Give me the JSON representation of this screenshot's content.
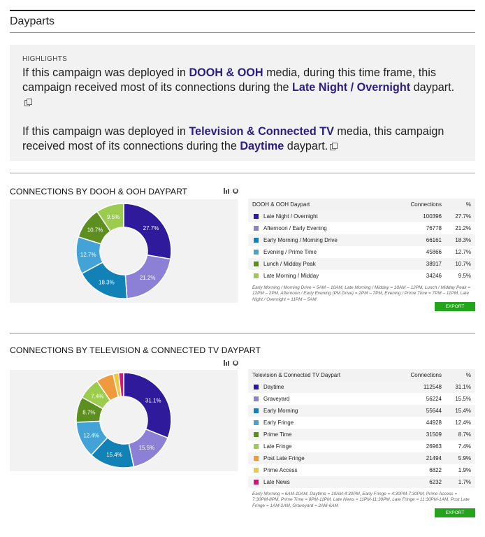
{
  "page": {
    "title": "Dayparts"
  },
  "highlights": {
    "label": "HIGHLIGHTS",
    "p1": {
      "pre": "If this campaign was deployed in ",
      "media": "DOOH & OOH",
      "mid": " media, during this time frame, this campaign received most of its connections during the ",
      "daypart": "Late Night / Overnight",
      "post": " daypart."
    },
    "p2": {
      "pre": "If this campaign was deployed in ",
      "media": "Television & Connected TV",
      "mid": " media, this campaign received most of its connections during the ",
      "daypart": "Daytime",
      "post": " daypart."
    }
  },
  "dooh": {
    "title": "CONNECTIONS BY DOOH & OOH DAYPART",
    "table_headers": {
      "name": "DOOH & OOH Daypart",
      "connections": "Connections",
      "pct": "%"
    },
    "footnote": "Early Morning / Morning Drive = 5AM – 10AM, Late Morning / Midday = 10AM – 12PM, Lunch / Midday Peak = 12PM – 2PM, Afternoon / Early Evening (PM Drive) = 2PM – 7PM, Evening / Prime Time = 7PM – 11PM, Late Night / Overnight = 11PM – 5AM",
    "export_label": "EXPORT",
    "rows": [
      {
        "name": "Late Night / Overnight",
        "connections": "100396",
        "pct": "27.7%",
        "color": "#2e1a9a"
      },
      {
        "name": "Afternoon / Early Evening",
        "connections": "76778",
        "pct": "21.2%",
        "color": "#8c7fd6"
      },
      {
        "name": "Early Morning / Morning Drive",
        "connections": "66161",
        "pct": "18.3%",
        "color": "#1282b6"
      },
      {
        "name": "Evening / Prime Time",
        "connections": "45866",
        "pct": "12.7%",
        "color": "#43a2d6"
      },
      {
        "name": "Lunch / Midday Peak",
        "connections": "38917",
        "pct": "10.7%",
        "color": "#5c8f1f"
      },
      {
        "name": "Late Morning / Midday",
        "connections": "34246",
        "pct": "9.5%",
        "color": "#9ccc4e"
      }
    ]
  },
  "tv": {
    "title": "CONNECTIONS BY TELEVISION & CONNECTED TV DAYPART",
    "table_headers": {
      "name": "Television & Connected TV Daypart",
      "connections": "Connections",
      "pct": "%"
    },
    "footnote": "Early Morning = 6AM-10AM,  Daytime = 10AM-4:30PM,  Early Fringe = 4:30PM-7:30PM, Prime Access = 7:30PM-8PM,  Prime Time = 8PM-11PM,  Late News = 11PM-11:30PM, Late Fringe = 11:30PM-1AM,  Post Late Fringe = 1AM-2AM,  Graveyard = 2AM-6AM",
    "export_label": "EXPORT",
    "rows": [
      {
        "name": "Daytime",
        "connections": "112548",
        "pct": "31.1%",
        "color": "#2e1a9a"
      },
      {
        "name": "Graveyard",
        "connections": "56224",
        "pct": "15.5%",
        "color": "#8c7fd6"
      },
      {
        "name": "Early Morning",
        "connections": "55644",
        "pct": "15.4%",
        "color": "#1282b6"
      },
      {
        "name": "Early Fringe",
        "connections": "44928",
        "pct": "12.4%",
        "color": "#43a2d6"
      },
      {
        "name": "Prime Time",
        "connections": "31509",
        "pct": "8.7%",
        "color": "#5c8f1f"
      },
      {
        "name": "Late Fringe",
        "connections": "26963",
        "pct": "7.4%",
        "color": "#9ccc4e"
      },
      {
        "name": "Post Late Fringe",
        "connections": "21494",
        "pct": "5.9%",
        "color": "#ef9a3c"
      },
      {
        "name": "Prime Access",
        "connections": "6822",
        "pct": "1.9%",
        "color": "#eecb3e"
      },
      {
        "name": "Late News",
        "connections": "6232",
        "pct": "1.7%",
        "color": "#d4187a"
      }
    ]
  },
  "chart_data": [
    {
      "type": "pie",
      "categories": [
        "Late Night / Overnight",
        "Afternoon / Early Evening",
        "Early Morning / Morning Drive",
        "Evening / Prime Time",
        "Lunch / Midday Peak",
        "Late Morning / Midday"
      ],
      "values": [
        100396,
        76778,
        66161,
        45866,
        38917,
        34246
      ],
      "labels": [
        "27.7%",
        "21.2%",
        "18.3%",
        "12.7%",
        "10.7%",
        "9.5%"
      ],
      "colors": [
        "#2e1a9a",
        "#8c7fd6",
        "#1282b6",
        "#43a2d6",
        "#5c8f1f",
        "#9ccc4e"
      ],
      "title": "CONNECTIONS BY DOOH & OOH DAYPART"
    },
    {
      "type": "pie",
      "categories": [
        "Daytime",
        "Graveyard",
        "Early Morning",
        "Early Fringe",
        "Prime Time",
        "Late Fringe",
        "Post Late Fringe",
        "Prime Access",
        "Late News"
      ],
      "values": [
        112548,
        56224,
        55644,
        44928,
        31509,
        26963,
        21494,
        6822,
        6232
      ],
      "labels": [
        "31.1%",
        "15.5%",
        "15.4%",
        "12.4%",
        "8.7%",
        "7.4%",
        "",
        "",
        ""
      ],
      "colors": [
        "#2e1a9a",
        "#8c7fd6",
        "#1282b6",
        "#43a2d6",
        "#5c8f1f",
        "#9ccc4e",
        "#ef9a3c",
        "#eecb3e",
        "#d4187a"
      ],
      "title": "CONNECTIONS BY TELEVISION & CONNECTED TV DAYPART"
    }
  ]
}
